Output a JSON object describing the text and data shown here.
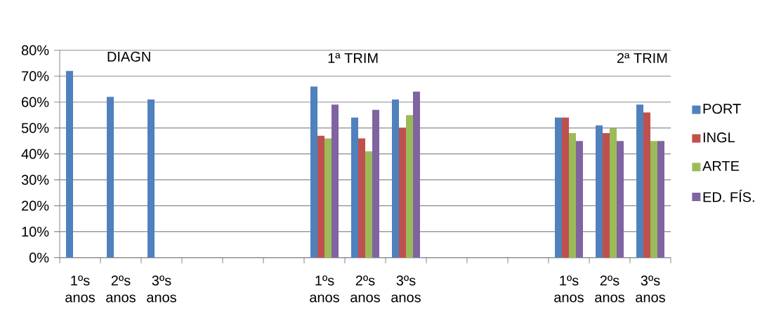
{
  "chart_data": {
    "type": "bar",
    "categories": [
      "1ºs anos",
      "2ºs anos",
      "3ºs anos",
      null,
      null,
      null,
      "1ºs anos",
      "2ºs anos",
      "3ºs anos",
      null,
      null,
      null,
      "1ºs anos",
      "2ºs anos",
      "3ºs anos"
    ],
    "series": [
      {
        "name": "PORT",
        "color": "#4f81bd",
        "values": [
          72,
          62,
          61,
          null,
          null,
          null,
          66,
          54,
          61,
          null,
          null,
          null,
          54,
          51,
          59
        ]
      },
      {
        "name": "INGL",
        "color": "#c0504d",
        "values": [
          null,
          null,
          null,
          null,
          null,
          null,
          47,
          46,
          50,
          null,
          null,
          null,
          54,
          48,
          56
        ]
      },
      {
        "name": "ARTE",
        "color": "#9bbb59",
        "values": [
          null,
          null,
          null,
          null,
          null,
          null,
          46,
          41,
          55,
          null,
          null,
          null,
          48,
          50,
          45
        ]
      },
      {
        "name": "ED. FÍS.",
        "color": "#8064a2",
        "values": [
          null,
          null,
          null,
          null,
          null,
          null,
          59,
          57,
          64,
          null,
          null,
          null,
          45,
          45,
          45
        ]
      }
    ],
    "ylim": [
      0,
      80
    ],
    "yticks": [
      {
        "value": 0,
        "label": "0%"
      },
      {
        "value": 10,
        "label": "10%"
      },
      {
        "value": 20,
        "label": "20%"
      },
      {
        "value": 30,
        "label": "30%"
      },
      {
        "value": 40,
        "label": "40%"
      },
      {
        "value": 50,
        "label": "50%"
      },
      {
        "value": 60,
        "label": "60%"
      },
      {
        "value": 70,
        "label": "70%"
      },
      {
        "value": 80,
        "label": "80%"
      }
    ],
    "annotations": [
      "DIAGN",
      "1ª TRIM",
      "2ª TRIM"
    ],
    "grid": "y",
    "legend": "right"
  }
}
